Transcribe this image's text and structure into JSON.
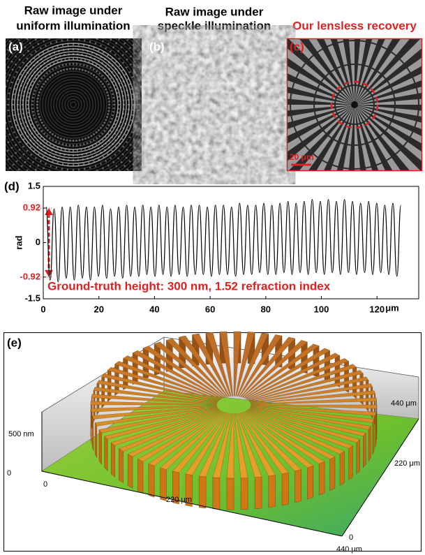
{
  "panels": {
    "a": {
      "label": "(a)",
      "title": [
        "Raw image under",
        "uniform illumination"
      ]
    },
    "b": {
      "label": "(b)",
      "title": [
        "Raw image under",
        "speckle illumination"
      ]
    },
    "c": {
      "label": "(c)",
      "title": "Our lensless recovery",
      "scale_bar": "20 μm"
    },
    "e": {
      "label": "(e)",
      "z_axis": [
        "500 nm",
        "0"
      ],
      "x_axis": [
        "0",
        "220 μm",
        "440 μm"
      ],
      "y_axis": [
        "0",
        "220 μm",
        "440 μm"
      ]
    }
  },
  "chart_data": {
    "type": "line",
    "panel_label": "(d)",
    "ylabel": "rad",
    "x_unit": "μm",
    "annotation": "Ground-truth height: 300 nm, 1.52 refraction index",
    "x": [
      1,
      2.45,
      3.9,
      5.35,
      6.8,
      8.25,
      9.7,
      11.15,
      12.6,
      14.05,
      15.5,
      16.95,
      18.4,
      19.85,
      21.3,
      22.75,
      24.2,
      25.65,
      27.1,
      28.55,
      30,
      31.45,
      32.9,
      34.35,
      35.8,
      37.25,
      38.7,
      40.15,
      41.6,
      43.05,
      44.5,
      45.95,
      47.4,
      48.85,
      50.3,
      51.75,
      53.2,
      54.65,
      56.1,
      57.55,
      59,
      60.45,
      61.9,
      63.35,
      64.8,
      66.25,
      67.7,
      69.15,
      70.6,
      72.05,
      73.5,
      74.95,
      76.4,
      77.85,
      79.3,
      80.75,
      82.2,
      83.65,
      85.1,
      86.55,
      88,
      89.45,
      90.9,
      92.35,
      93.8,
      95.25,
      96.7,
      98.15,
      99.6,
      101.05,
      102.5,
      103.95,
      105.4,
      106.85,
      108.3,
      109.75,
      111.2,
      112.65,
      114.1,
      115.55,
      117,
      118.45,
      119.9,
      121.35,
      122.8,
      124.25,
      125.7,
      127.15,
      128.6
    ],
    "series": [
      {
        "color": "#000000",
        "values": [
          0.95,
          -1.0,
          0.9,
          -1.05,
          0.95,
          -0.95,
          0.95,
          -1.0,
          1.0,
          -0.95,
          0.95,
          -1.0,
          0.95,
          -0.9,
          1.0,
          -0.95,
          0.9,
          -0.9,
          0.95,
          -0.95,
          1.0,
          -0.9,
          0.95,
          -0.9,
          1.0,
          -0.85,
          0.95,
          -0.9,
          1.0,
          -0.85,
          0.95,
          -0.9,
          1.0,
          -0.85,
          0.95,
          -0.9,
          1.0,
          -0.85,
          1.0,
          -0.85,
          0.95,
          -0.9,
          1.0,
          -0.85,
          1.0,
          -0.85,
          0.95,
          -0.9,
          1.05,
          -0.85,
          1.0,
          -0.85,
          1.0,
          -0.8,
          1.05,
          -0.85,
          1.0,
          -0.85,
          1.05,
          -0.8,
          1.1,
          -0.85,
          1.05,
          -0.8,
          1.1,
          -0.85,
          1.15,
          -0.8,
          1.1,
          -0.85,
          1.15,
          -0.8,
          1.1,
          -0.85,
          1.15,
          -0.8,
          1.1,
          -0.85,
          1.05,
          -0.8,
          1.1,
          -0.85,
          1.05,
          -0.8,
          1.0,
          -0.85,
          1.05,
          -0.9,
          1.0
        ]
      }
    ],
    "xlim": [
      0,
      135
    ],
    "ylim": [
      -1.5,
      1.5
    ],
    "xticks": [
      0,
      20,
      40,
      60,
      80,
      100,
      120
    ],
    "yticks": [
      1.5,
      0.92,
      0,
      -0.92,
      -1.5
    ],
    "ytick_colors": [
      "#000000",
      "#e02020",
      "#000000",
      "#e02020",
      "#000000"
    ]
  }
}
